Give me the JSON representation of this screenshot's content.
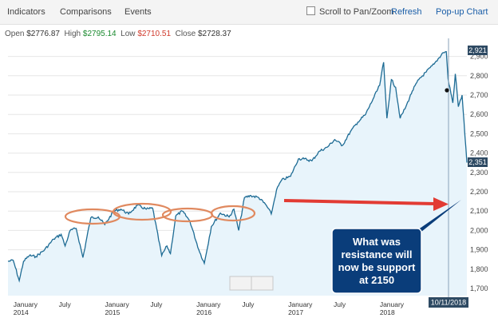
{
  "toolbar": {
    "indicators": "Indicators",
    "comparisons": "Comparisons",
    "events": "Events",
    "scroll_to_pan": "Scroll to Pan/Zoom",
    "refresh": "Refresh",
    "popup_chart": "Pop-up Chart"
  },
  "ohlc": {
    "open_label": "Open",
    "open_value": "$2776.87",
    "high_label": "High",
    "high_value": "$2795.14",
    "low_label": "Low",
    "low_value": "$2710.51",
    "close_label": "Close",
    "close_value": "$2728.37"
  },
  "price_badges": {
    "top": "2,921",
    "bottom": "2,351"
  },
  "date_badge": "10/11/2018",
  "annotation": {
    "lines": [
      "What was",
      "resistance will",
      "now be support",
      "at 2150"
    ]
  },
  "colors": {
    "line": "#1d6b94",
    "area": "#e8f4fb",
    "ellipse": "#e0895f",
    "arrow": "#e23b33",
    "callout": "#0a3d7a",
    "badge": "#2e4a63"
  },
  "chart_data": {
    "type": "line",
    "ylim": [
      1650,
      2950
    ],
    "yticks": [
      "1,700",
      "1,800",
      "1,900",
      "2,000",
      "2,100",
      "2,200",
      "2,300",
      "2,400",
      "2,500",
      "2,600",
      "2,700",
      "2,800",
      "2,900"
    ],
    "ytick_values": [
      1700,
      1800,
      1900,
      2000,
      2100,
      2200,
      2300,
      2400,
      2500,
      2600,
      2700,
      2800,
      2900
    ],
    "xticks": [
      {
        "label": "January",
        "year": "2014"
      },
      {
        "label": "July",
        "year": ""
      },
      {
        "label": "January",
        "year": "2015"
      },
      {
        "label": "July",
        "year": ""
      },
      {
        "label": "January",
        "year": "2016"
      },
      {
        "label": "July",
        "year": ""
      },
      {
        "label": "January",
        "year": "2017"
      },
      {
        "label": "July",
        "year": ""
      },
      {
        "label": "January",
        "year": "2018"
      }
    ],
    "series": [
      {
        "x": [
          "2013-12-20",
          "2014-01-10",
          "2014-02-03",
          "2014-02-20",
          "2014-03-15",
          "2014-04-10",
          "2014-05-15",
          "2014-06-20",
          "2014-07-20",
          "2014-08-05",
          "2014-08-25",
          "2014-09-18",
          "2014-10-15",
          "2014-11-15",
          "2014-12-15",
          "2015-01-10",
          "2015-02-15",
          "2015-03-15",
          "2015-04-15",
          "2015-05-20",
          "2015-06-25",
          "2015-07-20",
          "2015-08-25",
          "2015-09-15",
          "2015-09-29",
          "2015-10-20",
          "2015-11-15",
          "2015-12-15",
          "2016-01-20",
          "2016-02-11",
          "2016-03-10",
          "2016-04-15",
          "2016-05-20",
          "2016-06-08",
          "2016-06-27",
          "2016-07-20",
          "2016-08-15",
          "2016-09-15",
          "2016-10-15",
          "2016-11-04",
          "2016-11-25",
          "2016-12-15",
          "2017-01-20",
          "2017-02-20",
          "2017-03-15",
          "2017-04-15",
          "2017-05-15",
          "2017-06-15",
          "2017-07-15",
          "2017-08-15",
          "2017-09-15",
          "2017-10-15",
          "2017-11-15",
          "2017-12-15",
          "2018-01-10",
          "2018-01-26",
          "2018-02-08",
          "2018-02-26",
          "2018-03-15",
          "2018-04-02",
          "2018-04-25",
          "2018-05-20",
          "2018-06-15",
          "2018-07-15",
          "2018-08-15",
          "2018-09-20",
          "2018-10-03",
          "2018-10-10",
          "2018-10-29",
          "2018-11-08",
          "2018-11-20",
          "2018-12-05",
          "2018-12-24"
        ],
        "y": [
          1840,
          1845,
          1740,
          1840,
          1870,
          1865,
          1900,
          1955,
          1980,
          1920,
          2000,
          2010,
          1860,
          2065,
          2070,
          2030,
          2100,
          2110,
          2085,
          2130,
          2110,
          2115,
          1870,
          1920,
          1880,
          2075,
          2100,
          2050,
          1900,
          1830,
          2020,
          2090,
          2070,
          2110,
          2000,
          2170,
          2180,
          2170,
          2130,
          2085,
          2210,
          2260,
          2280,
          2370,
          2370,
          2360,
          2410,
          2430,
          2470,
          2440,
          2510,
          2560,
          2600,
          2680,
          2750,
          2870,
          2580,
          2780,
          2740,
          2580,
          2640,
          2720,
          2780,
          2820,
          2860,
          2920,
          2925,
          2785,
          2660,
          2810,
          2640,
          2700,
          2351
        ]
      }
    ],
    "title": "",
    "xlabel": "",
    "ylabel": ""
  }
}
